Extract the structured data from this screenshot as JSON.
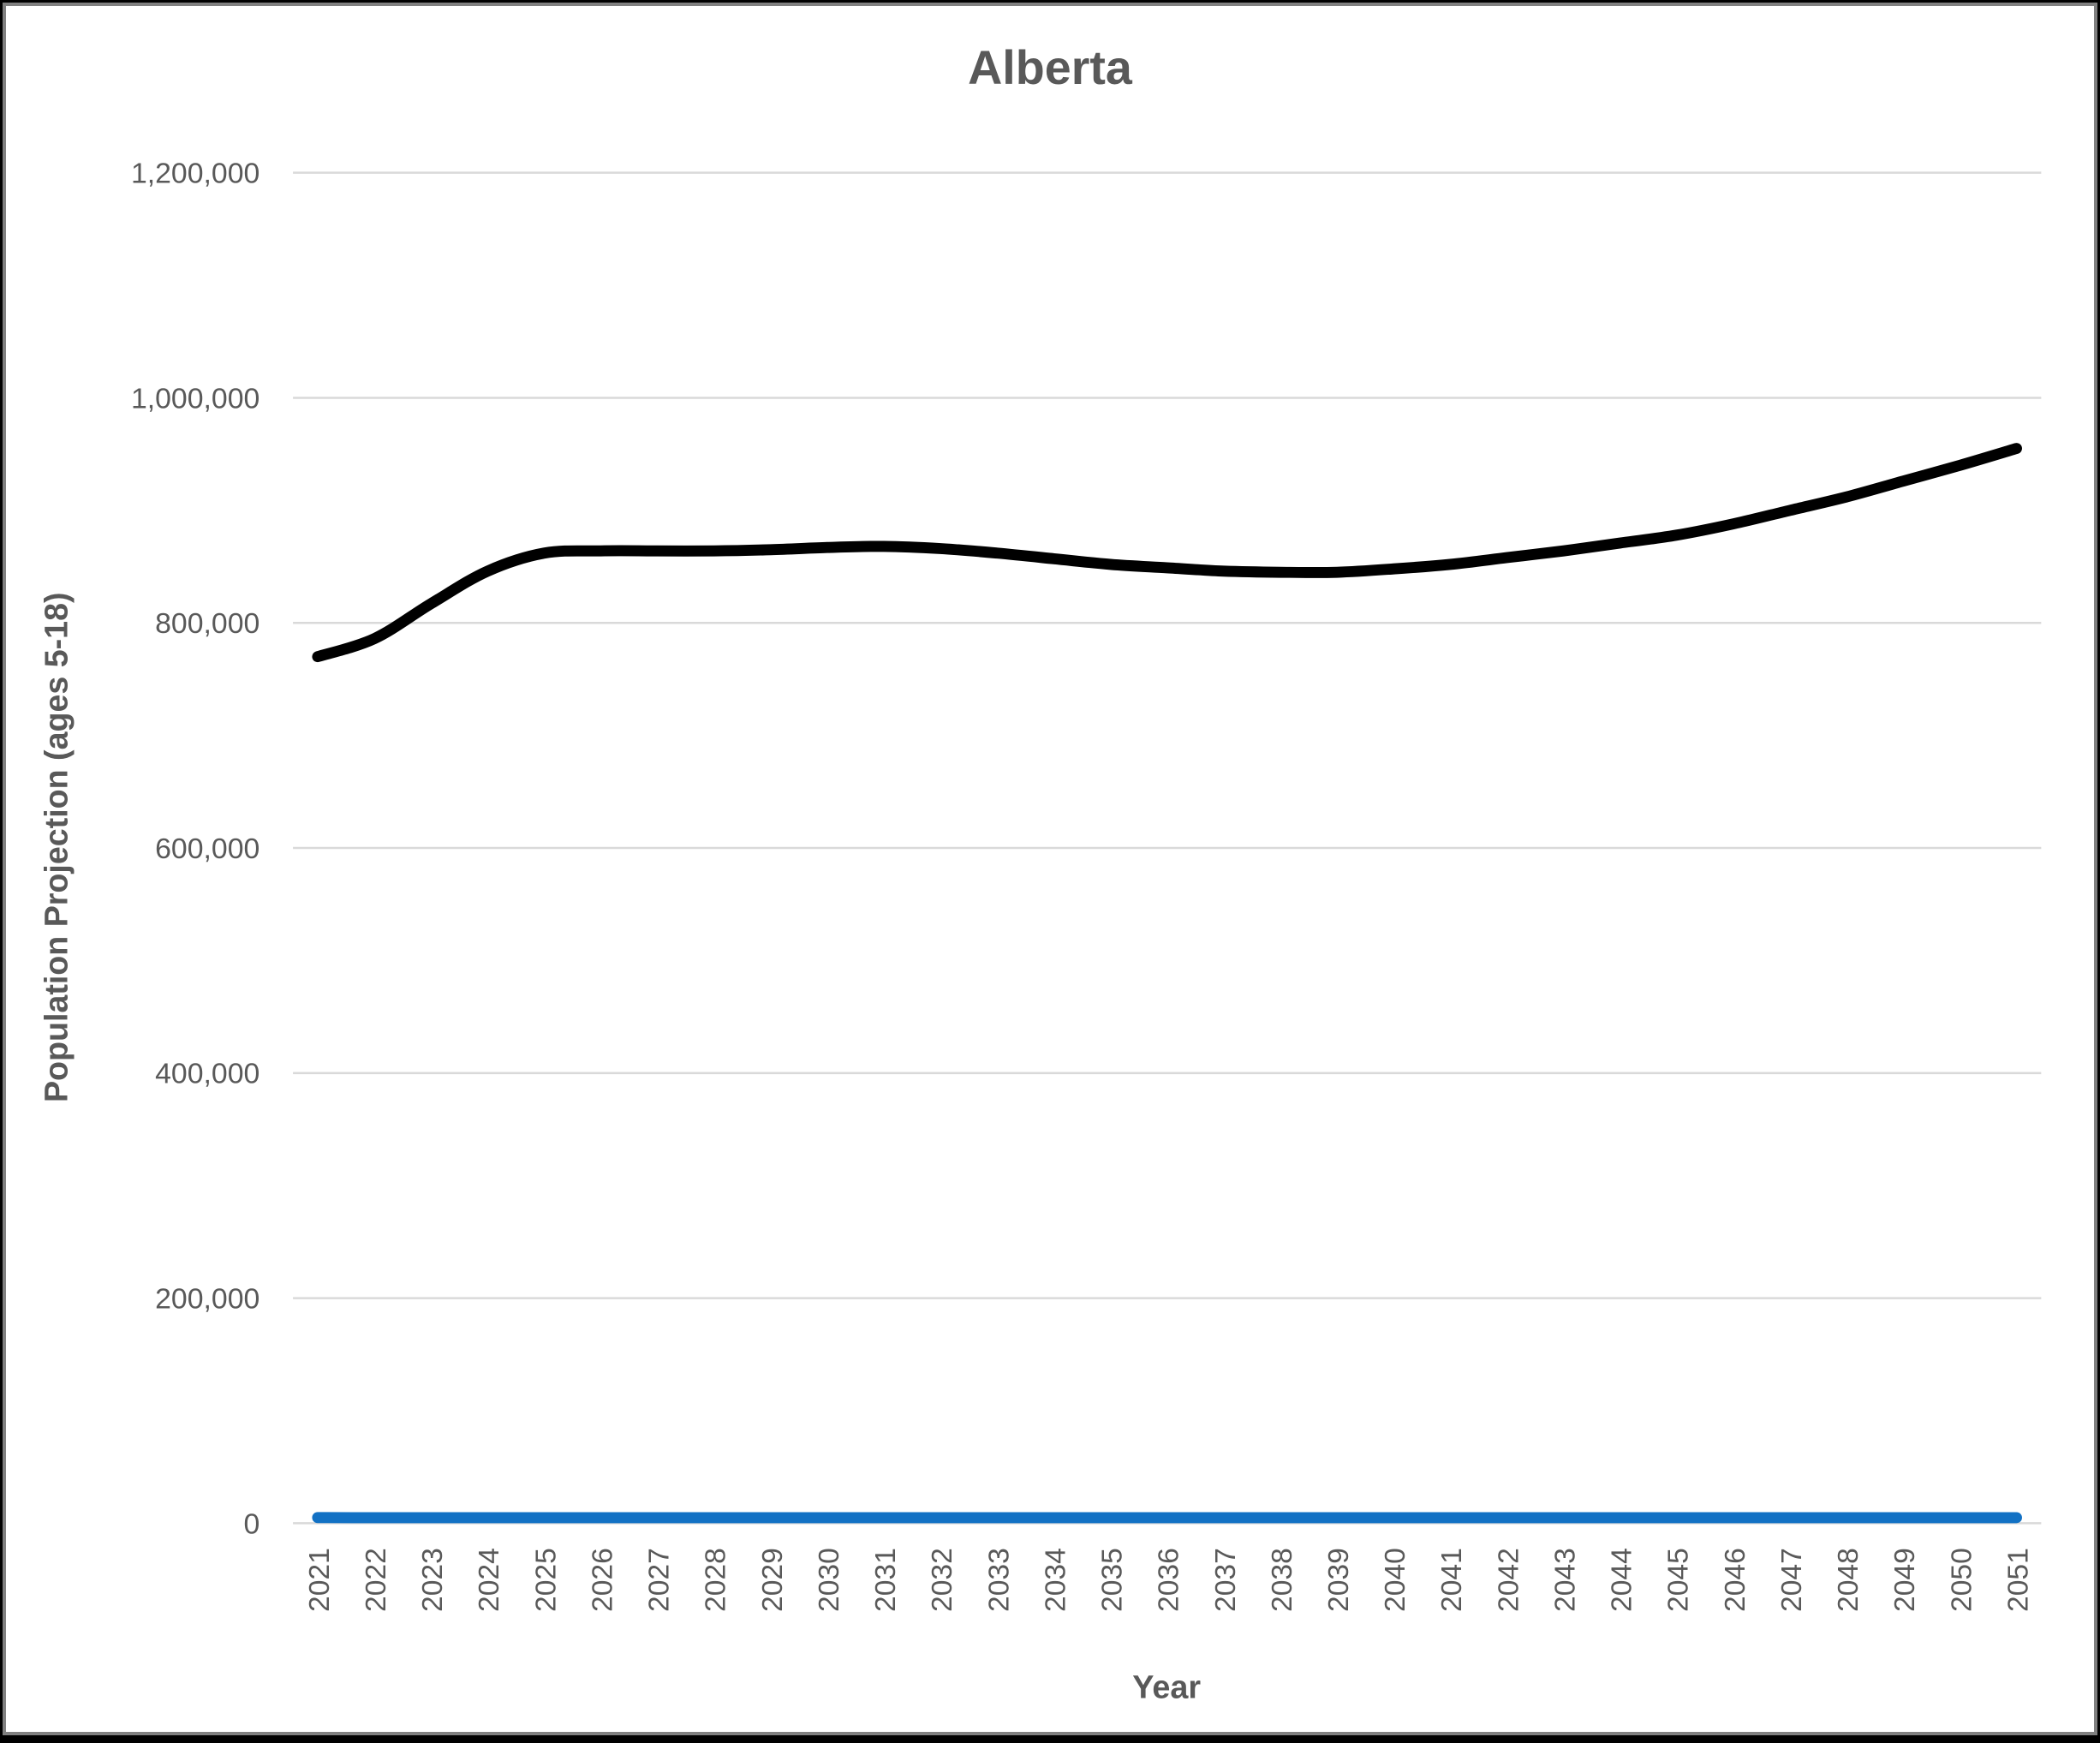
{
  "chart_data": {
    "type": "line",
    "title": "Alberta",
    "xlabel": "Year",
    "ylabel": "Population Projection (ages 5-18)",
    "x": [
      2021,
      2022,
      2023,
      2024,
      2025,
      2026,
      2027,
      2028,
      2029,
      2030,
      2031,
      2032,
      2033,
      2034,
      2035,
      2036,
      2037,
      2038,
      2039,
      2040,
      2041,
      2042,
      2043,
      2044,
      2045,
      2046,
      2047,
      2048,
      2049,
      2050,
      2051
    ],
    "series": [
      {
        "id": "population-projection",
        "name": "",
        "color": "#000000",
        "values": [
          770000,
          786000,
          817000,
          846000,
          862000,
          864000,
          864000,
          864000,
          865000,
          867000,
          868000,
          866000,
          862000,
          857000,
          852000,
          849000,
          846000,
          845000,
          845000,
          848000,
          852000,
          858000,
          864000,
          871000,
          878000,
          888000,
          900000,
          912000,
          926000,
          940000,
          955000
        ]
      },
      {
        "id": "near-zero-line",
        "name": "",
        "color": "#1271C4",
        "values": [
          5000,
          5000,
          5000,
          5000,
          5000,
          5000,
          5000,
          5000,
          5000,
          5000,
          5000,
          5000,
          5000,
          5000,
          5000,
          5000,
          5000,
          5000,
          5000,
          5000,
          5000,
          5000,
          5000,
          5000,
          5000,
          5000,
          5000,
          5000,
          5000,
          5000,
          5000
        ]
      }
    ],
    "ylim": [
      0,
      1200000
    ],
    "ytick_step": 200000,
    "ytick_labels": [
      "0",
      "200,000",
      "400,000",
      "600,000",
      "800,000",
      "1,000,000",
      "1,200,000"
    ],
    "grid": "horizontal",
    "legend": "none"
  },
  "styles": {
    "text_color": "#595959",
    "grid_color": "#D9D9D9",
    "plot_background": "#FFFFFF",
    "frame_border_color": "#808080",
    "outer_border_color": "#000000"
  }
}
